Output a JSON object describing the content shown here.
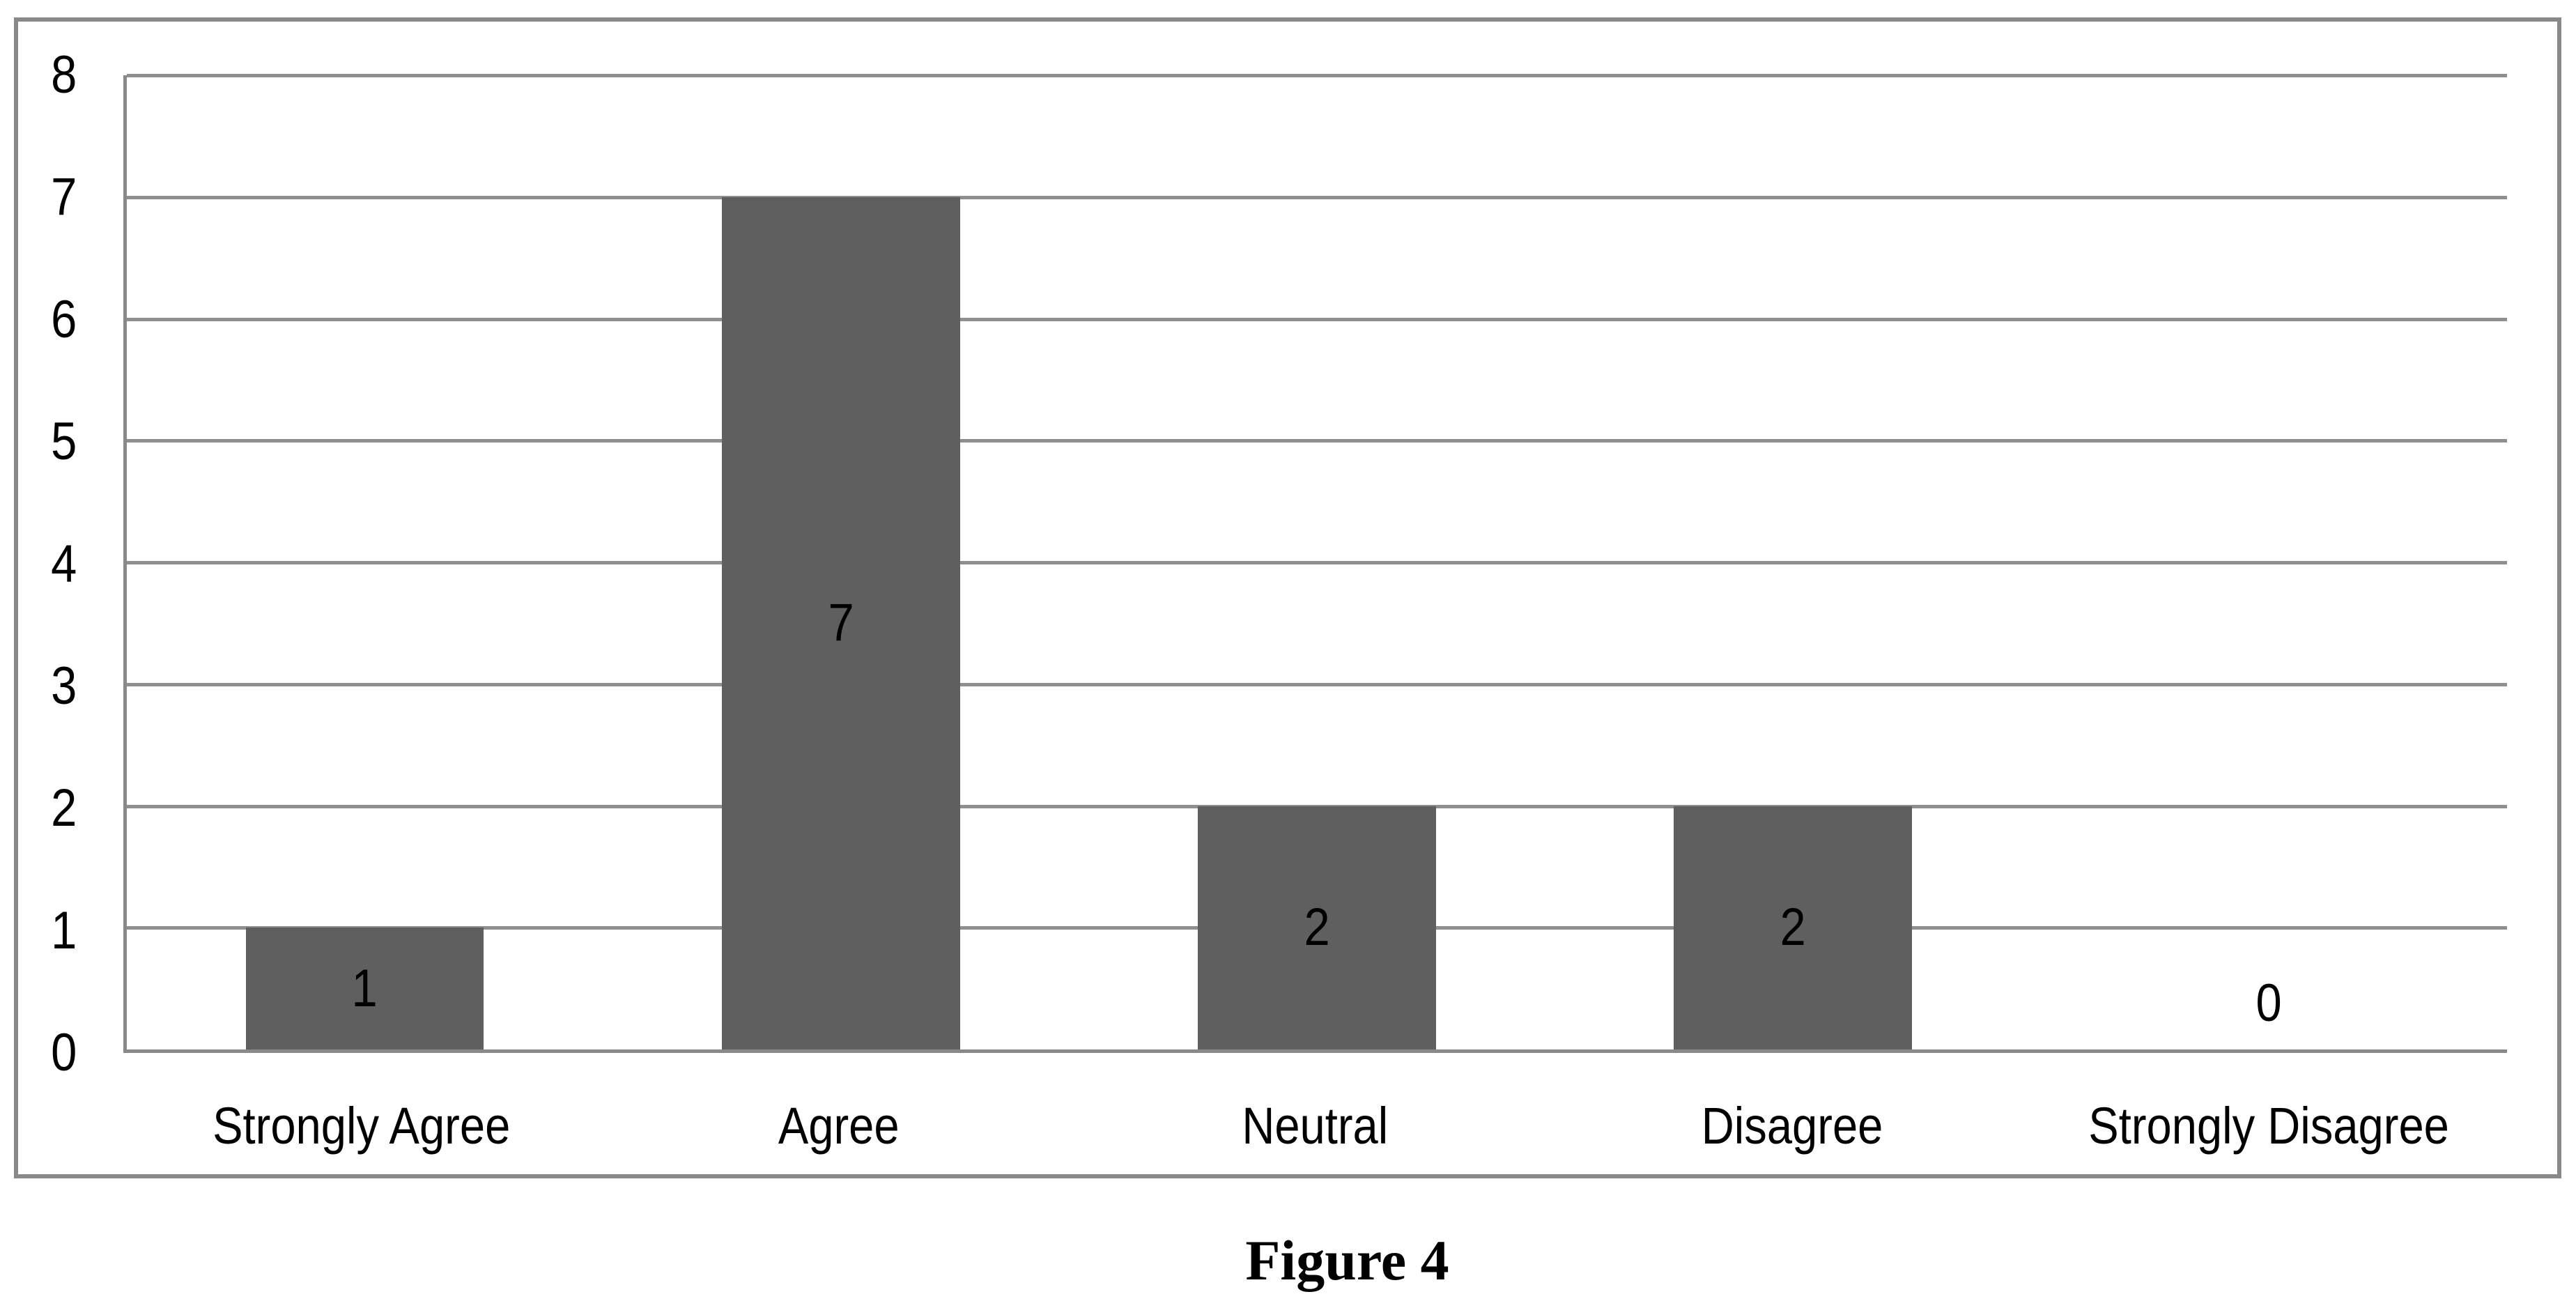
{
  "figure": {
    "caption": "Figure 4"
  },
  "chart_data": {
    "type": "bar",
    "title": "",
    "categories": [
      "Strongly Agree",
      "Agree",
      "Neutral",
      "Disagree",
      "Strongly Disagree"
    ],
    "values": [
      1,
      7,
      2,
      2,
      0
    ],
    "data_labels": [
      "1",
      "7",
      "2",
      "2",
      "0"
    ],
    "xlabel": "",
    "ylabel": "",
    "ylim": [
      0,
      8
    ],
    "yticks": [
      0,
      1,
      2,
      3,
      4,
      5,
      6,
      7,
      8
    ],
    "grid": "horizontal",
    "legend": "none",
    "data_label_position": "inside-center",
    "colors": {
      "bar": "#5f5f5f",
      "gridline": "#8f8f8f",
      "axis": "#898989",
      "frame_border": "#898989",
      "text": "#000000"
    }
  }
}
